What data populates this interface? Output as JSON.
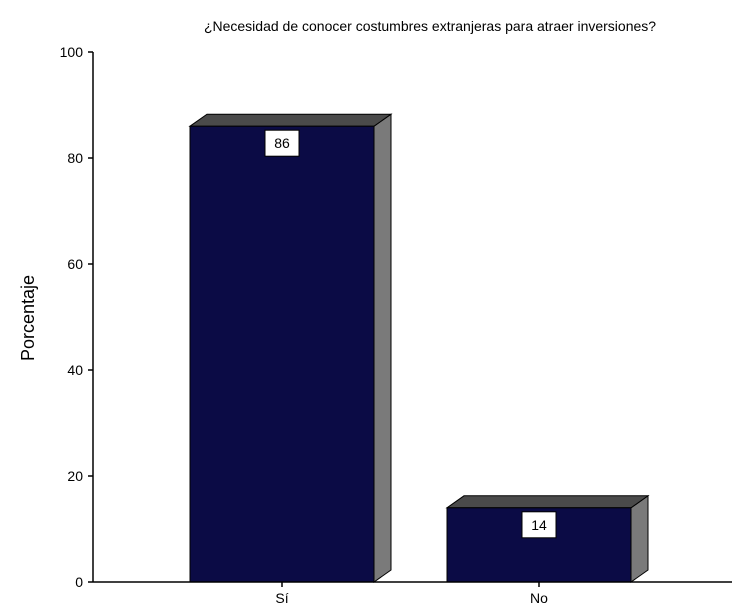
{
  "chart_data": {
    "type": "bar",
    "title": "¿Necesidad de conocer costumbres extranjeras para atraer inversiones?",
    "xlabel": "",
    "ylabel": "Porcentaje",
    "categories": [
      "Sí",
      "No"
    ],
    "values": [
      86,
      14
    ],
    "data_labels": [
      "86",
      "14"
    ],
    "ylim": [
      0,
      100
    ],
    "yticks": [
      0,
      20,
      40,
      60,
      80,
      100
    ],
    "grid": false,
    "legend": "none",
    "colors": {
      "bar_front": "#0b0b45",
      "bar_top": "#4a4a4a",
      "bar_side": "#7a7a7a",
      "outline": "#000000",
      "label_box": "#ffffff"
    }
  }
}
